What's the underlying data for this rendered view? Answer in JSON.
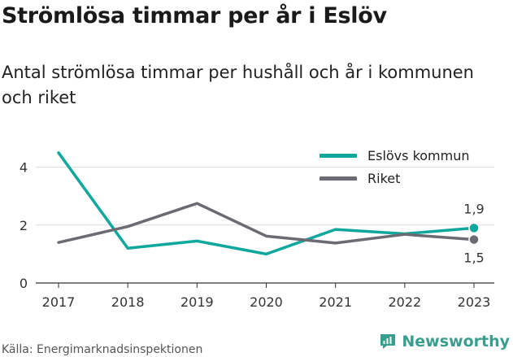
{
  "title": "Strömlösa timmar per år i Eslöv",
  "subtitle": "Antal strömlösa timmar per hushåll och år i kommunen och riket",
  "source": "Källa: Energimarknadsinspektionen",
  "brand": {
    "name": "Newsworthy",
    "icon": "newsworthy-chat-chart-icon",
    "color": "#3a9e8e"
  },
  "chart_data": {
    "type": "line",
    "x": [
      "2017",
      "2018",
      "2019",
      "2020",
      "2021",
      "2022",
      "2023"
    ],
    "ylim": [
      0,
      5
    ],
    "yticks": [
      "0",
      "2",
      "4"
    ],
    "grid": true,
    "legend_position": "top-right",
    "series": [
      {
        "name": "Eslövs kommun",
        "color": "#10a89c",
        "values": [
          4.5,
          1.2,
          1.45,
          1.0,
          1.85,
          1.7,
          1.9
        ],
        "end_label": "1,9"
      },
      {
        "name": "Riket",
        "color": "#6b6b73",
        "values": [
          1.4,
          1.95,
          2.75,
          1.62,
          1.38,
          1.68,
          1.5
        ],
        "end_label": "1,5"
      }
    ]
  }
}
